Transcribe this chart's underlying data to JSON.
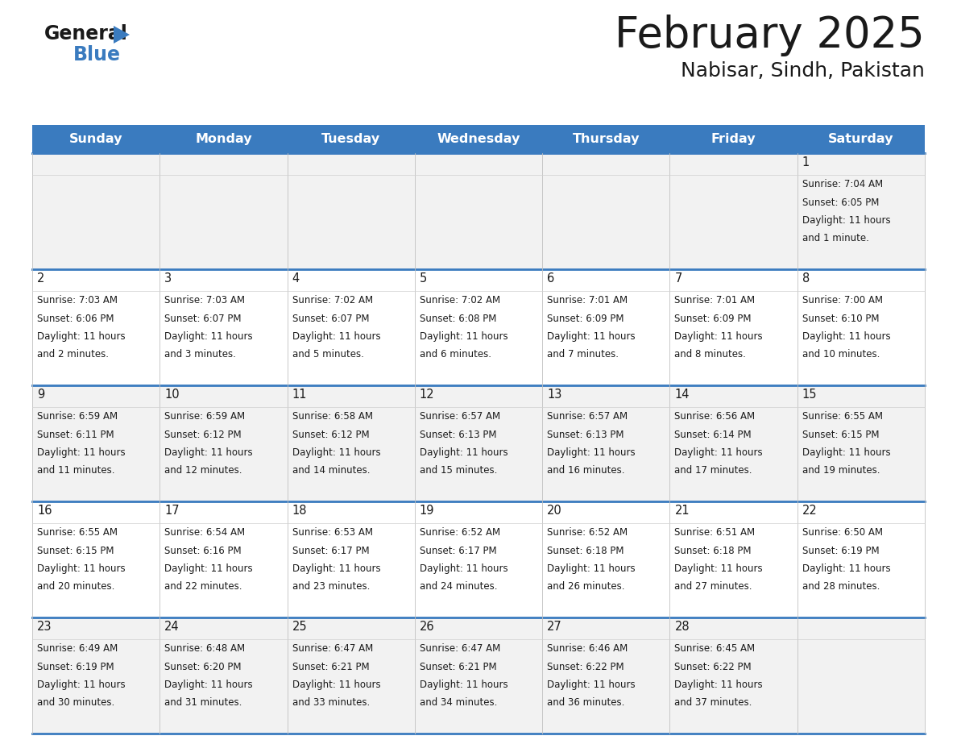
{
  "title": "February 2025",
  "subtitle": "Nabisar, Sindh, Pakistan",
  "header_color": "#3a7bbf",
  "header_text_color": "#ffffff",
  "day_names": [
    "Sunday",
    "Monday",
    "Tuesday",
    "Wednesday",
    "Thursday",
    "Friday",
    "Saturday"
  ],
  "background_color": "#ffffff",
  "cell_bg_row0": "#f2f2f2",
  "cell_bg_row1": "#ffffff",
  "grid_line_color": "#3a7bbf",
  "text_color": "#1a1a1a",
  "logo_general_color": "#1a1a1a",
  "logo_blue_color": "#3a7bbf",
  "logo_triangle_color": "#3a7bbf",
  "days": [
    {
      "day": 1,
      "col": 6,
      "row": 0,
      "sunrise": "7:04 AM",
      "sunset": "6:05 PM",
      "daylight_line1": "Daylight: 11 hours",
      "daylight_line2": "and 1 minute."
    },
    {
      "day": 2,
      "col": 0,
      "row": 1,
      "sunrise": "7:03 AM",
      "sunset": "6:06 PM",
      "daylight_line1": "Daylight: 11 hours",
      "daylight_line2": "and 2 minutes."
    },
    {
      "day": 3,
      "col": 1,
      "row": 1,
      "sunrise": "7:03 AM",
      "sunset": "6:07 PM",
      "daylight_line1": "Daylight: 11 hours",
      "daylight_line2": "and 3 minutes."
    },
    {
      "day": 4,
      "col": 2,
      "row": 1,
      "sunrise": "7:02 AM",
      "sunset": "6:07 PM",
      "daylight_line1": "Daylight: 11 hours",
      "daylight_line2": "and 5 minutes."
    },
    {
      "day": 5,
      "col": 3,
      "row": 1,
      "sunrise": "7:02 AM",
      "sunset": "6:08 PM",
      "daylight_line1": "Daylight: 11 hours",
      "daylight_line2": "and 6 minutes."
    },
    {
      "day": 6,
      "col": 4,
      "row": 1,
      "sunrise": "7:01 AM",
      "sunset": "6:09 PM",
      "daylight_line1": "Daylight: 11 hours",
      "daylight_line2": "and 7 minutes."
    },
    {
      "day": 7,
      "col": 5,
      "row": 1,
      "sunrise": "7:01 AM",
      "sunset": "6:09 PM",
      "daylight_line1": "Daylight: 11 hours",
      "daylight_line2": "and 8 minutes."
    },
    {
      "day": 8,
      "col": 6,
      "row": 1,
      "sunrise": "7:00 AM",
      "sunset": "6:10 PM",
      "daylight_line1": "Daylight: 11 hours",
      "daylight_line2": "and 10 minutes."
    },
    {
      "day": 9,
      "col": 0,
      "row": 2,
      "sunrise": "6:59 AM",
      "sunset": "6:11 PM",
      "daylight_line1": "Daylight: 11 hours",
      "daylight_line2": "and 11 minutes."
    },
    {
      "day": 10,
      "col": 1,
      "row": 2,
      "sunrise": "6:59 AM",
      "sunset": "6:12 PM",
      "daylight_line1": "Daylight: 11 hours",
      "daylight_line2": "and 12 minutes."
    },
    {
      "day": 11,
      "col": 2,
      "row": 2,
      "sunrise": "6:58 AM",
      "sunset": "6:12 PM",
      "daylight_line1": "Daylight: 11 hours",
      "daylight_line2": "and 14 minutes."
    },
    {
      "day": 12,
      "col": 3,
      "row": 2,
      "sunrise": "6:57 AM",
      "sunset": "6:13 PM",
      "daylight_line1": "Daylight: 11 hours",
      "daylight_line2": "and 15 minutes."
    },
    {
      "day": 13,
      "col": 4,
      "row": 2,
      "sunrise": "6:57 AM",
      "sunset": "6:13 PM",
      "daylight_line1": "Daylight: 11 hours",
      "daylight_line2": "and 16 minutes."
    },
    {
      "day": 14,
      "col": 5,
      "row": 2,
      "sunrise": "6:56 AM",
      "sunset": "6:14 PM",
      "daylight_line1": "Daylight: 11 hours",
      "daylight_line2": "and 17 minutes."
    },
    {
      "day": 15,
      "col": 6,
      "row": 2,
      "sunrise": "6:55 AM",
      "sunset": "6:15 PM",
      "daylight_line1": "Daylight: 11 hours",
      "daylight_line2": "and 19 minutes."
    },
    {
      "day": 16,
      "col": 0,
      "row": 3,
      "sunrise": "6:55 AM",
      "sunset": "6:15 PM",
      "daylight_line1": "Daylight: 11 hours",
      "daylight_line2": "and 20 minutes."
    },
    {
      "day": 17,
      "col": 1,
      "row": 3,
      "sunrise": "6:54 AM",
      "sunset": "6:16 PM",
      "daylight_line1": "Daylight: 11 hours",
      "daylight_line2": "and 22 minutes."
    },
    {
      "day": 18,
      "col": 2,
      "row": 3,
      "sunrise": "6:53 AM",
      "sunset": "6:17 PM",
      "daylight_line1": "Daylight: 11 hours",
      "daylight_line2": "and 23 minutes."
    },
    {
      "day": 19,
      "col": 3,
      "row": 3,
      "sunrise": "6:52 AM",
      "sunset": "6:17 PM",
      "daylight_line1": "Daylight: 11 hours",
      "daylight_line2": "and 24 minutes."
    },
    {
      "day": 20,
      "col": 4,
      "row": 3,
      "sunrise": "6:52 AM",
      "sunset": "6:18 PM",
      "daylight_line1": "Daylight: 11 hours",
      "daylight_line2": "and 26 minutes."
    },
    {
      "day": 21,
      "col": 5,
      "row": 3,
      "sunrise": "6:51 AM",
      "sunset": "6:18 PM",
      "daylight_line1": "Daylight: 11 hours",
      "daylight_line2": "and 27 minutes."
    },
    {
      "day": 22,
      "col": 6,
      "row": 3,
      "sunrise": "6:50 AM",
      "sunset": "6:19 PM",
      "daylight_line1": "Daylight: 11 hours",
      "daylight_line2": "and 28 minutes."
    },
    {
      "day": 23,
      "col": 0,
      "row": 4,
      "sunrise": "6:49 AM",
      "sunset": "6:19 PM",
      "daylight_line1": "Daylight: 11 hours",
      "daylight_line2": "and 30 minutes."
    },
    {
      "day": 24,
      "col": 1,
      "row": 4,
      "sunrise": "6:48 AM",
      "sunset": "6:20 PM",
      "daylight_line1": "Daylight: 11 hours",
      "daylight_line2": "and 31 minutes."
    },
    {
      "day": 25,
      "col": 2,
      "row": 4,
      "sunrise": "6:47 AM",
      "sunset": "6:21 PM",
      "daylight_line1": "Daylight: 11 hours",
      "daylight_line2": "and 33 minutes."
    },
    {
      "day": 26,
      "col": 3,
      "row": 4,
      "sunrise": "6:47 AM",
      "sunset": "6:21 PM",
      "daylight_line1": "Daylight: 11 hours",
      "daylight_line2": "and 34 minutes."
    },
    {
      "day": 27,
      "col": 4,
      "row": 4,
      "sunrise": "6:46 AM",
      "sunset": "6:22 PM",
      "daylight_line1": "Daylight: 11 hours",
      "daylight_line2": "and 36 minutes."
    },
    {
      "day": 28,
      "col": 5,
      "row": 4,
      "sunrise": "6:45 AM",
      "sunset": "6:22 PM",
      "daylight_line1": "Daylight: 11 hours",
      "daylight_line2": "and 37 minutes."
    }
  ],
  "num_rows": 5,
  "num_cols": 7
}
